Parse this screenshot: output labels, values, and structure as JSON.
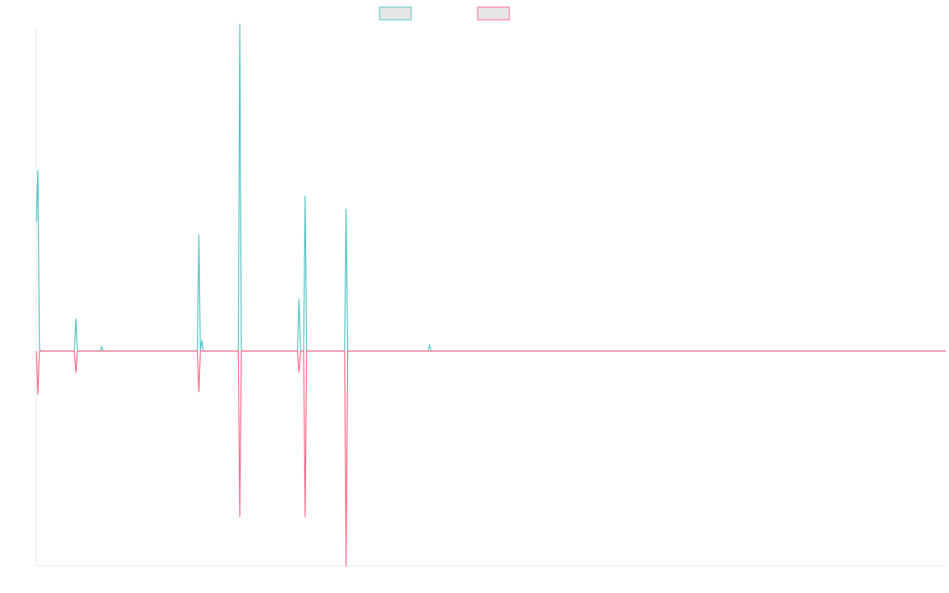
{
  "chart_data": {
    "type": "line",
    "title": "",
    "xlabel": "",
    "ylabel": "",
    "ylim": [
      -1.0,
      1.5
    ],
    "grid": false,
    "legend_position": "top-center",
    "legend_labels_visible": false,
    "x": [
      0,
      1,
      2,
      3,
      4,
      5,
      6,
      7,
      8,
      9,
      10,
      11,
      12,
      13,
      14,
      15,
      16,
      17,
      18,
      19,
      20,
      21,
      22,
      23,
      24,
      25,
      26,
      27,
      28,
      29,
      30,
      31,
      32,
      33,
      34,
      35,
      36,
      37,
      38,
      39,
      40,
      41,
      42,
      43,
      44,
      45,
      46,
      47,
      48,
      49,
      50,
      51,
      52,
      53,
      54,
      55,
      56,
      57,
      58,
      59,
      60,
      61,
      62,
      63,
      64,
      65,
      66,
      67,
      68,
      69,
      70,
      71,
      72,
      73,
      74,
      75,
      76,
      77,
      78,
      79,
      80,
      81,
      82,
      83,
      84,
      85,
      86,
      87,
      88,
      89,
      90,
      91,
      92,
      93,
      94,
      95,
      96,
      97,
      98,
      99,
      100,
      101,
      102,
      103,
      104,
      105,
      106,
      107,
      108,
      109,
      110,
      111,
      112,
      113,
      114,
      115,
      116,
      117,
      118,
      119,
      120,
      121,
      122,
      123,
      124,
      125,
      126,
      127,
      128,
      129,
      130,
      131,
      132,
      133,
      134,
      135,
      136,
      137,
      138,
      139,
      140,
      141,
      142,
      143,
      144,
      145,
      146,
      147,
      148,
      149,
      150,
      151,
      152,
      153,
      154,
      155,
      156,
      157,
      158,
      159,
      160,
      161,
      162,
      163,
      164,
      165,
      166,
      167,
      168,
      169,
      170,
      171,
      172,
      173,
      174,
      175,
      176,
      177,
      178,
      179,
      180,
      181,
      182,
      183,
      184,
      185,
      186,
      187,
      188,
      189,
      190,
      191,
      192,
      193,
      194,
      195,
      196,
      197,
      198,
      199,
      200,
      201,
      202,
      203,
      204,
      205,
      206,
      207,
      208,
      209,
      210,
      211,
      212,
      213,
      214,
      215,
      216,
      217,
      218,
      219,
      220,
      221,
      222,
      223,
      224,
      225,
      226,
      227,
      228,
      229,
      230,
      231,
      232,
      233,
      234,
      235,
      236,
      237,
      238,
      239,
      240,
      241,
      242,
      243,
      244,
      245,
      246,
      247,
      248,
      249,
      250,
      251,
      252,
      253,
      254,
      255,
      256,
      257,
      258,
      259,
      260,
      261,
      262,
      263,
      264,
      265,
      266,
      267,
      268,
      269,
      270,
      271,
      272,
      273,
      274,
      275,
      276,
      277,
      278,
      279,
      280,
      281,
      282,
      283,
      284,
      285,
      286,
      287,
      288,
      289,
      290,
      291,
      292,
      293,
      294,
      295,
      296,
      297,
      298,
      299,
      300,
      301,
      302,
      303,
      304,
      305,
      306,
      307,
      308,
      309,
      310,
      311,
      312,
      313,
      314,
      315,
      316,
      317,
      318,
      319,
      320,
      321,
      322,
      323,
      324,
      325,
      326,
      327,
      328,
      329,
      330,
      331,
      332,
      333,
      334,
      335,
      336,
      337,
      338,
      339,
      340,
      341,
      342,
      343,
      344,
      345,
      346,
      347,
      348,
      349,
      350,
      351,
      352,
      353,
      354,
      355,
      356,
      357,
      358,
      359,
      360,
      361,
      362,
      363,
      364,
      365,
      366,
      367,
      368,
      369,
      370,
      371,
      372,
      373,
      374,
      375,
      376,
      377,
      378,
      379,
      380,
      381,
      382,
      383,
      384,
      385,
      386,
      387,
      388,
      389,
      390,
      391,
      392,
      393,
      394,
      395,
      396,
      397,
      398,
      399,
      400,
      401,
      402,
      403,
      404,
      405,
      406,
      407,
      408,
      409,
      410,
      411,
      412,
      413,
      414,
      415,
      416,
      417,
      418,
      419,
      420,
      421,
      422,
      423,
      424,
      425,
      426,
      427,
      428,
      429,
      430,
      431,
      432,
      433,
      434,
      435,
      436,
      437,
      438,
      439,
      440,
      441,
      442,
      443,
      444,
      445,
      446,
      447,
      448,
      449,
      450,
      451,
      452,
      453,
      454,
      455,
      456,
      457,
      458,
      459,
      460,
      461,
      462,
      463,
      464,
      465,
      466,
      467,
      468,
      469,
      470,
      471,
      472,
      473,
      474,
      475,
      476,
      477,
      478,
      479,
      480,
      481,
      482,
      483,
      484,
      485,
      486,
      487,
      488,
      489,
      490,
      491,
      492,
      493,
      494,
      495,
      496,
      497,
      498,
      499,
      500,
      501,
      502,
      503,
      504,
      505,
      506,
      507,
      508,
      509,
      510,
      511,
      512,
      513,
      514,
      515,
      516,
      517,
      518,
      519,
      520,
      521,
      522,
      523,
      524,
      525,
      526,
      527,
      528,
      529,
      530,
      531,
      532,
      533,
      534,
      535,
      536,
      537,
      538,
      539,
      540,
      541,
      542,
      543,
      544,
      545,
      546,
      547,
      548,
      549,
      550,
      551,
      552,
      553,
      554,
      555,
      556,
      557,
      558,
      559,
      560,
      561,
      562,
      563,
      564,
      565,
      566,
      567,
      568,
      569,
      570,
      571,
      572,
      573,
      574,
      575,
      576,
      577,
      578,
      579,
      580,
      581,
      582,
      583,
      584,
      585,
      586,
      587,
      588,
      589,
      590,
      591,
      592,
      593,
      594,
      595,
      596,
      597,
      598,
      599
    ],
    "series": [
      {
        "color": "#4bc0c0",
        "fill": "#e6e6e6",
        "points": [
          [
            0,
            0.6
          ],
          [
            1,
            0.84
          ],
          [
            2,
            0.01
          ],
          [
            3,
            0.0
          ],
          [
            25,
            0.0
          ],
          [
            26,
            0.15
          ],
          [
            27,
            0.0
          ],
          [
            42,
            0.0
          ],
          [
            43,
            0.02
          ],
          [
            44,
            0.0
          ],
          [
            106,
            0.0
          ],
          [
            107,
            0.54
          ],
          [
            108,
            0.0
          ],
          [
            109,
            0.05
          ],
          [
            110,
            0.0
          ],
          [
            133,
            0.0
          ],
          [
            134,
            1.52
          ],
          [
            135,
            0.0
          ],
          [
            172,
            0.0
          ],
          [
            173,
            0.24
          ],
          [
            174,
            0.0
          ],
          [
            176,
            0.0
          ],
          [
            177,
            0.72
          ],
          [
            178,
            0.0
          ],
          [
            203,
            0.0
          ],
          [
            204,
            0.66
          ],
          [
            205,
            0.0
          ],
          [
            258,
            0.0
          ],
          [
            259,
            0.03
          ],
          [
            260,
            0.0
          ],
          [
            599,
            0.0
          ]
        ]
      },
      {
        "color": "#ff6384",
        "fill": "#e6e6e6",
        "points": [
          [
            0,
            0.0
          ],
          [
            1,
            -0.2
          ],
          [
            2,
            0.0
          ],
          [
            25,
            0.0
          ],
          [
            26,
            -0.1
          ],
          [
            27,
            0.0
          ],
          [
            106,
            0.0
          ],
          [
            107,
            -0.19
          ],
          [
            108,
            0.0
          ],
          [
            133,
            0.0
          ],
          [
            134,
            -0.77
          ],
          [
            135,
            0.0
          ],
          [
            172,
            0.0
          ],
          [
            173,
            -0.1
          ],
          [
            174,
            0.0
          ],
          [
            176,
            0.0
          ],
          [
            177,
            -0.77
          ],
          [
            178,
            0.0
          ],
          [
            203,
            0.0
          ],
          [
            204,
            -1.0
          ],
          [
            205,
            0.0
          ],
          [
            599,
            0.0
          ]
        ]
      }
    ]
  }
}
